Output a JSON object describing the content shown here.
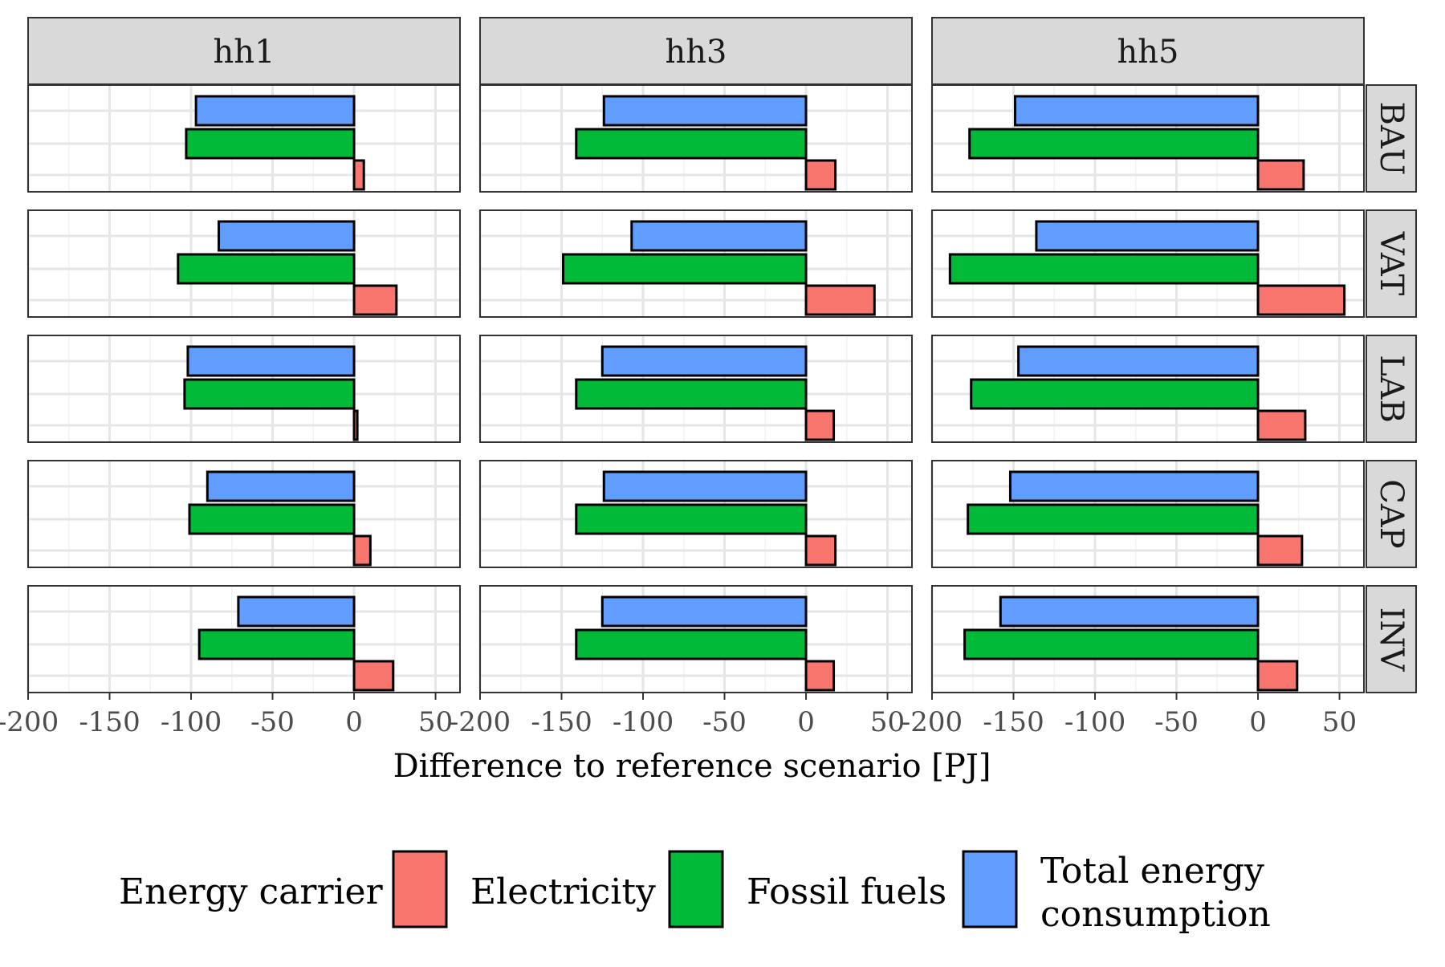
{
  "chart_data": {
    "type": "bar",
    "orientation": "horizontal",
    "facet_columns": [
      "hh1",
      "hh3",
      "hh5"
    ],
    "facet_rows": [
      "BAU",
      "VAT",
      "LAB",
      "CAP",
      "INV"
    ],
    "xlabel": "Difference to reference scenario [PJ]",
    "xlim": [
      -200,
      65
    ],
    "x_ticks": [
      -200,
      -150,
      -100,
      -50,
      0,
      50
    ],
    "x_tick_labels": [
      "-200",
      "-150",
      "-100",
      "-50",
      "0",
      "50"
    ],
    "grid": true,
    "legend": {
      "title": "Energy carrier",
      "position": "bottom",
      "entries": [
        "Electricity",
        "Fossil fuels",
        "Total energy",
        "consumption"
      ]
    },
    "series": [
      {
        "name": "Electricity",
        "color": "#F8766D",
        "values": {
          "hh1": {
            "BAU": 6,
            "VAT": 26,
            "LAB": 2,
            "CAP": 10,
            "INV": 24
          },
          "hh3": {
            "BAU": 18,
            "VAT": 42,
            "LAB": 17,
            "CAP": 18,
            "INV": 17
          },
          "hh5": {
            "BAU": 28,
            "VAT": 53,
            "LAB": 29,
            "CAP": 27,
            "INV": 24
          }
        }
      },
      {
        "name": "Fossil fuels",
        "color": "#00BA38",
        "values": {
          "hh1": {
            "BAU": -103,
            "VAT": -108,
            "LAB": -104,
            "CAP": -101,
            "INV": -95
          },
          "hh3": {
            "BAU": -141,
            "VAT": -149,
            "LAB": -141,
            "CAP": -141,
            "INV": -141
          },
          "hh5": {
            "BAU": -177,
            "VAT": -189,
            "LAB": -176,
            "CAP": -178,
            "INV": -180
          }
        }
      },
      {
        "name": "Total energy consumption",
        "color": "#619CFF",
        "values": {
          "hh1": {
            "BAU": -97,
            "VAT": -83,
            "LAB": -102,
            "CAP": -90,
            "INV": -71
          },
          "hh3": {
            "BAU": -124,
            "VAT": -107,
            "LAB": -125,
            "CAP": -124,
            "INV": -125
          },
          "hh5": {
            "BAU": -149,
            "VAT": -136,
            "LAB": -147,
            "CAP": -152,
            "INV": -158
          }
        }
      }
    ]
  }
}
